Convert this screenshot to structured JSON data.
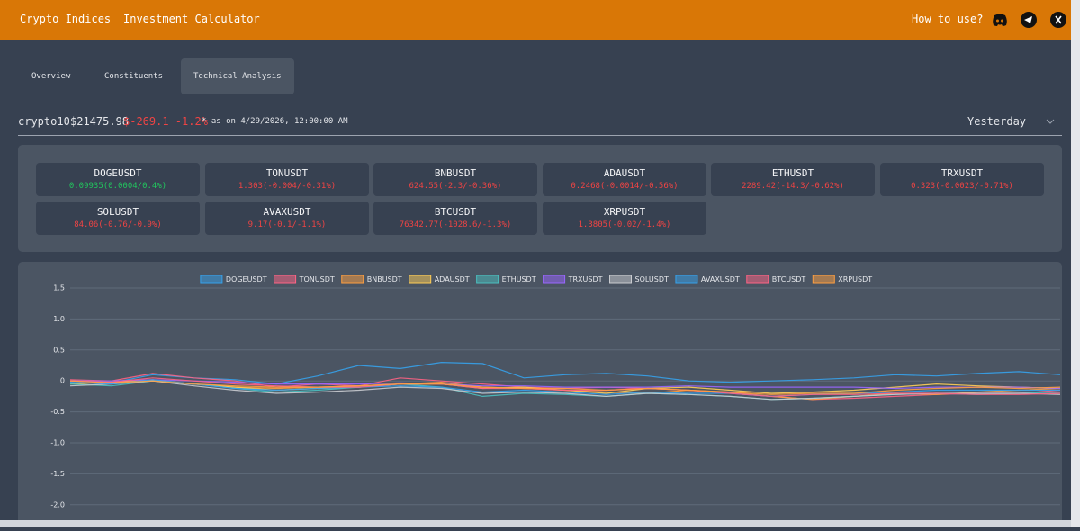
{
  "header": {
    "brand": "Crypto Indices",
    "nav": "Investment Calculator",
    "help": "How to use?"
  },
  "tabs": [
    "Overview",
    "Constituents",
    "Technical Analysis"
  ],
  "summary": {
    "index": "crypto10",
    "price": "$21475.98",
    "change": "$-269.1 -1.2%",
    "as_of": "* as on 4/29/2026, 12:00:00 AM",
    "period": "Yesterday"
  },
  "tickers": [
    {
      "symbol": "DOGEUSDT",
      "quote": "0.09935(0.0004/0.4%)",
      "direction": "up"
    },
    {
      "symbol": "TONUSDT",
      "quote": "1.303(-0.004/-0.31%)",
      "direction": "down"
    },
    {
      "symbol": "BNBUSDT",
      "quote": "624.55(-2.3/-0.36%)",
      "direction": "down"
    },
    {
      "symbol": "ADAUSDT",
      "quote": "0.2468(-0.0014/-0.56%)",
      "direction": "down"
    },
    {
      "symbol": "ETHUSDT",
      "quote": "2289.42(-14.3/-0.62%)",
      "direction": "down"
    },
    {
      "symbol": "TRXUSDT",
      "quote": "0.323(-0.0023/-0.71%)",
      "direction": "down"
    },
    {
      "symbol": "SOLUSDT",
      "quote": "84.06(-0.76/-0.9%)",
      "direction": "down"
    },
    {
      "symbol": "AVAXUSDT",
      "quote": "9.17(-0.1/-1.1%)",
      "direction": "down"
    },
    {
      "symbol": "BTCUSDT",
      "quote": "76342.77(-1028.6/-1.3%)",
      "direction": "down"
    },
    {
      "symbol": "XRPUSDT",
      "quote": "1.3805(-0.02/-1.4%)",
      "direction": "down"
    }
  ],
  "chart_data": {
    "type": "line",
    "ylim": [
      -2.25,
      1.5
    ],
    "grid": true,
    "yticks": [
      {
        "value": 1.5,
        "label": "1.5"
      },
      {
        "value": 1,
        "label": "1.0"
      },
      0.5,
      0,
      -0.5,
      {
        "value": -1,
        "label": "-1.0"
      },
      -1.5,
      {
        "value": -2,
        "label": "-2.0"
      }
    ],
    "series": [
      {
        "name": "DOGEUSDT",
        "color": "#36a2eb",
        "values": [
          0,
          -0.03,
          0.1,
          0.05,
          0.02,
          -0.05,
          0.08,
          0.25,
          0.2,
          0.3,
          0.28,
          0.05,
          0.1,
          0.12,
          0.08,
          0,
          -0.02,
          0,
          0.02,
          0.05,
          0.1,
          0.08,
          0.12,
          0.15,
          0.1
        ]
      },
      {
        "name": "TONUSDT",
        "color": "#ff6384",
        "values": [
          0.02,
          0,
          0.12,
          0.05,
          0,
          -0.1,
          -0.05,
          -0.08,
          0.05,
          0,
          -0.05,
          -0.1,
          -0.12,
          -0.1,
          -0.12,
          -0.15,
          -0.2,
          -0.25,
          -0.3,
          -0.28,
          -0.25,
          -0.22,
          -0.2,
          -0.2,
          -0.15
        ]
      },
      {
        "name": "BNBUSDT",
        "color": "#ff9f40",
        "values": [
          0,
          -0.02,
          0.02,
          -0.05,
          -0.1,
          -0.12,
          -0.1,
          -0.08,
          -0.05,
          -0.02,
          -0.1,
          -0.12,
          -0.15,
          -0.18,
          -0.2,
          -0.15,
          -0.18,
          -0.25,
          -0.3,
          -0.25,
          -0.2,
          -0.22,
          -0.18,
          -0.15,
          -0.12
        ]
      },
      {
        "name": "ADAUSDT",
        "color": "#ffcd56",
        "values": [
          -0.05,
          -0.02,
          0,
          -0.05,
          -0.1,
          -0.15,
          -0.12,
          -0.1,
          -0.05,
          -0.05,
          -0.12,
          -0.1,
          -0.15,
          -0.2,
          -0.12,
          -0.1,
          -0.15,
          -0.2,
          -0.18,
          -0.15,
          -0.1,
          -0.05,
          -0.08,
          -0.1,
          -0.12
        ]
      },
      {
        "name": "ETHUSDT",
        "color": "#4bc0c0",
        "values": [
          -0.05,
          -0.08,
          0,
          -0.05,
          -0.12,
          -0.18,
          -0.15,
          -0.1,
          -0.05,
          -0.1,
          -0.25,
          -0.2,
          -0.22,
          -0.25,
          -0.2,
          -0.22,
          -0.25,
          -0.3,
          -0.28,
          -0.25,
          -0.22,
          -0.2,
          -0.22,
          -0.2,
          -0.18
        ]
      },
      {
        "name": "TRXUSDT",
        "color": "#9966ff",
        "values": [
          0,
          0,
          0.02,
          0,
          -0.02,
          -0.05,
          -0.05,
          -0.05,
          -0.03,
          -0.05,
          -0.08,
          -0.08,
          -0.1,
          -0.1,
          -0.1,
          -0.08,
          -0.1,
          -0.1,
          -0.1,
          -0.1,
          -0.12,
          -0.1,
          -0.1,
          -0.1,
          -0.12
        ]
      },
      {
        "name": "SOLUSDT",
        "color": "#c9cbcf",
        "values": [
          -0.08,
          -0.05,
          0,
          -0.08,
          -0.15,
          -0.2,
          -0.18,
          -0.15,
          -0.1,
          -0.12,
          -0.2,
          -0.18,
          -0.2,
          -0.25,
          -0.2,
          -0.22,
          -0.25,
          -0.3,
          -0.28,
          -0.25,
          -0.22,
          -0.2,
          -0.2,
          -0.2,
          -0.22
        ]
      },
      {
        "name": "AVAXUSDT",
        "color": "#36a2eb",
        "values": [
          -0.02,
          -0.05,
          0.02,
          -0.05,
          -0.12,
          -0.15,
          -0.12,
          -0.1,
          -0.08,
          -0.1,
          -0.18,
          -0.15,
          -0.18,
          -0.22,
          -0.18,
          -0.2,
          -0.2,
          -0.25,
          -0.22,
          -0.2,
          -0.18,
          -0.15,
          -0.15,
          -0.15,
          -0.15
        ]
      },
      {
        "name": "BTCUSDT",
        "color": "#ff6384",
        "values": [
          0,
          -0.02,
          0.05,
          0,
          -0.05,
          -0.08,
          -0.1,
          -0.1,
          -0.05,
          -0.05,
          -0.12,
          -0.12,
          -0.15,
          -0.15,
          -0.12,
          -0.15,
          -0.2,
          -0.25,
          -0.22,
          -0.22,
          -0.2,
          -0.2,
          -0.22,
          -0.22,
          -0.2
        ]
      },
      {
        "name": "XRPUSDT",
        "color": "#ff9f40",
        "values": [
          0,
          -0.03,
          0,
          -0.05,
          -0.08,
          -0.1,
          -0.1,
          -0.08,
          -0.05,
          -0.05,
          -0.1,
          -0.12,
          -0.12,
          -0.15,
          -0.12,
          -0.15,
          -0.18,
          -0.22,
          -0.2,
          -0.2,
          -0.15,
          -0.12,
          -0.1,
          -0.12,
          -0.1
        ]
      }
    ]
  }
}
